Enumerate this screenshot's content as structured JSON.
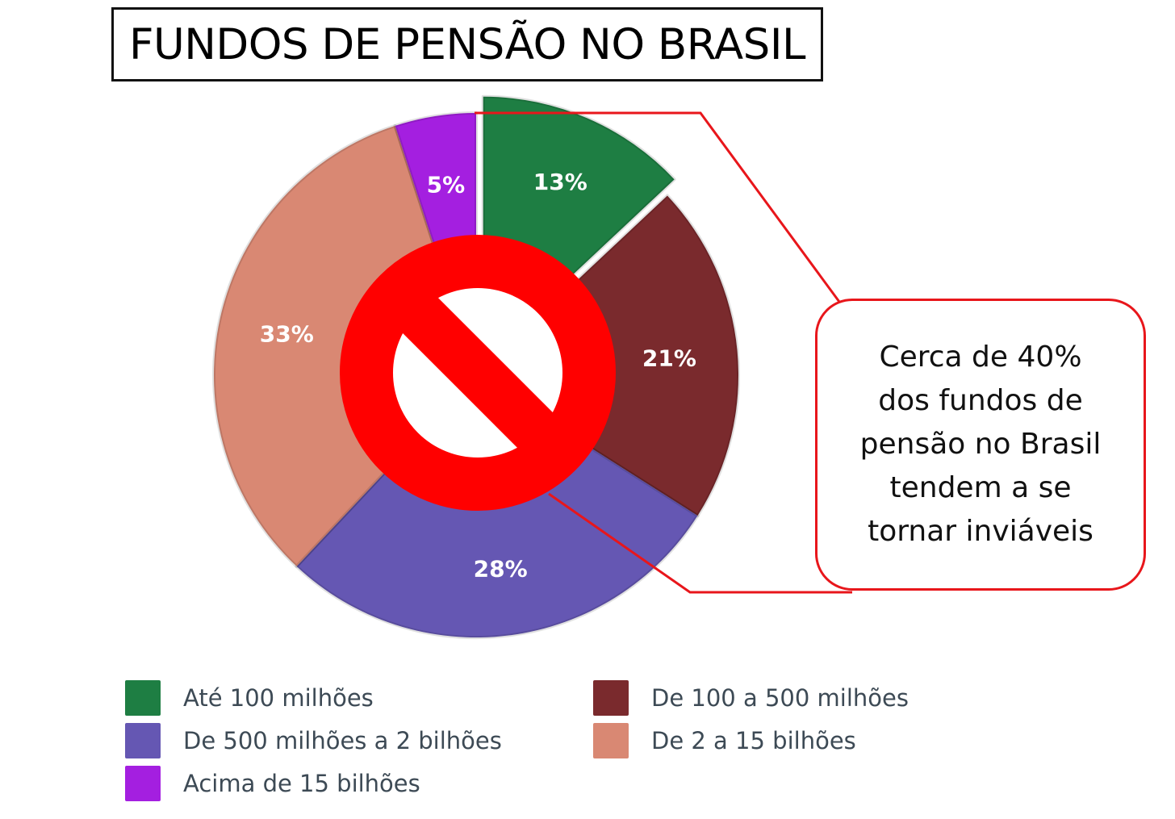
{
  "title": "FUNDOS DE PENSÃO NO BRASIL",
  "chart_data": {
    "type": "pie",
    "title": "FUNDOS DE PENSÃO NO BRASIL",
    "categories": [
      "Até 100 milhões",
      "De 100 a 500 milhões",
      "De 500 milhões a 2 bilhões",
      "De 2 a 15 bilhões",
      "Acima de 15 bilhões"
    ],
    "values": [
      13,
      21,
      28,
      33,
      5
    ],
    "labels": [
      "13%",
      "21%",
      "28%",
      "33%",
      "5%"
    ],
    "colors": [
      "#1e7e43",
      "#7a2a2d",
      "#6557b3",
      "#d98873",
      "#a41fe0"
    ],
    "exploded": [
      "Até 100 milhões"
    ],
    "legend_position": "bottom",
    "overlay": "prohibition-sign"
  },
  "callout": {
    "lines": [
      "Cerca de 40%",
      "dos fundos de",
      "pensão no Brasil",
      "tendem a se",
      "tornar inviáveis"
    ],
    "border_color": "#e8161b"
  },
  "legend": {
    "items": [
      {
        "label": "Até 100 milhões",
        "color": "#1e7e43"
      },
      {
        "label": "De 100 a 500 milhões",
        "color": "#7a2a2d"
      },
      {
        "label": "De 500 milhões a 2 bilhões",
        "color": "#6557b3"
      },
      {
        "label": "De 2 a 15 bilhões",
        "color": "#d98873"
      },
      {
        "label": "Acima de 15 bilhões",
        "color": "#a41fe0"
      }
    ]
  },
  "prohibition_color": "#ff0000"
}
